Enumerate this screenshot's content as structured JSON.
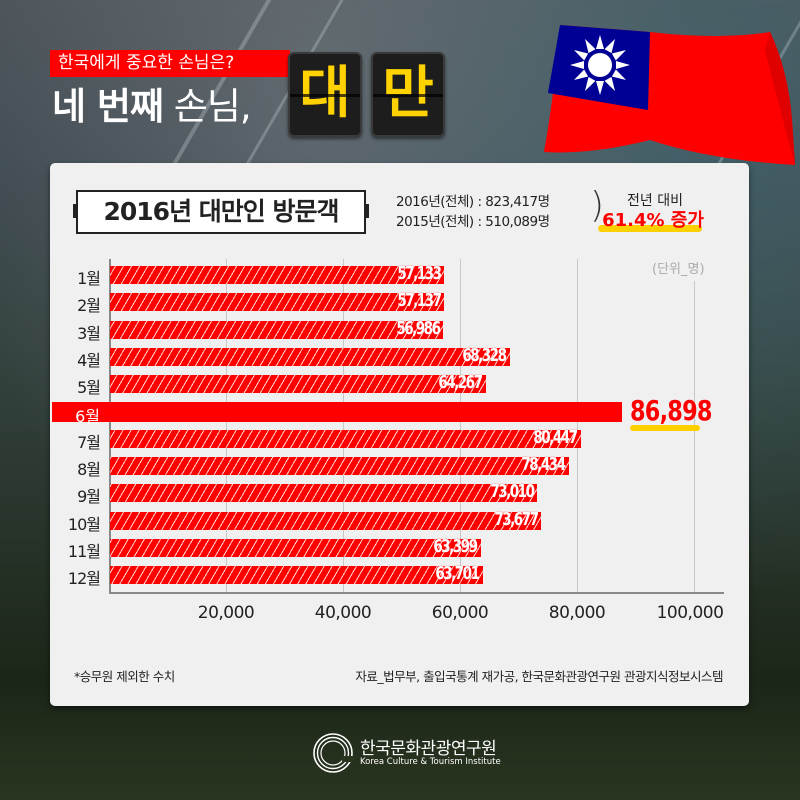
{
  "header": {
    "tag": "한국에게 중요한 손님은?",
    "headline_bold": "네 번째",
    "headline_light": "손님,",
    "tiles": [
      "대",
      "만"
    ]
  },
  "flag": {
    "name": "Taiwan flag",
    "colors": {
      "red": "#fe0000",
      "blue": "#000095",
      "white": "#ffffff"
    }
  },
  "panel": {
    "title": "2016년 대만인 방문객",
    "stat_2016": "2016년(전체) : 823,417명",
    "stat_2015": "2015년(전체) : 510,089명",
    "comparison_label": "전년 대비",
    "comparison_value": "61.4% 증가",
    "unit": "(단위_명)",
    "footnote": "*승무원 제외한 수치",
    "source": "자료_법무부, 출입국통계 재가공, 한국문화관광연구원 관광지식정보시스템"
  },
  "chart_data": {
    "type": "bar",
    "orientation": "horizontal",
    "title": "2016년 대만인 방문객",
    "categories": [
      "1월",
      "2월",
      "3월",
      "4월",
      "5월",
      "6월",
      "7월",
      "8월",
      "9월",
      "10월",
      "11월",
      "12월"
    ],
    "values": [
      57133,
      57137,
      56986,
      68328,
      64267,
      86898,
      80447,
      78434,
      73010,
      73677,
      63399,
      63701
    ],
    "value_labels": [
      "57,133",
      "57,137",
      "56,986",
      "68,328",
      "64,267",
      "86,898",
      "80,447",
      "78,434",
      "73,010",
      "73,677",
      "63,399",
      "63,701"
    ],
    "highlight": {
      "category": "6월",
      "value": 86898,
      "label": "86,898"
    },
    "xlabel": "",
    "ylabel": "",
    "unit": "(단위_명)",
    "xticks": [
      "20,000",
      "40,000",
      "60,000",
      "80,000",
      "100,000"
    ],
    "xlim": [
      0,
      105000
    ],
    "grid": true,
    "bar_color": "#ff0000",
    "highlight_color": "#ff0000"
  },
  "logo": {
    "korean": "한국문화관광연구원",
    "english": "Korea Culture & Tourism Institute"
  }
}
